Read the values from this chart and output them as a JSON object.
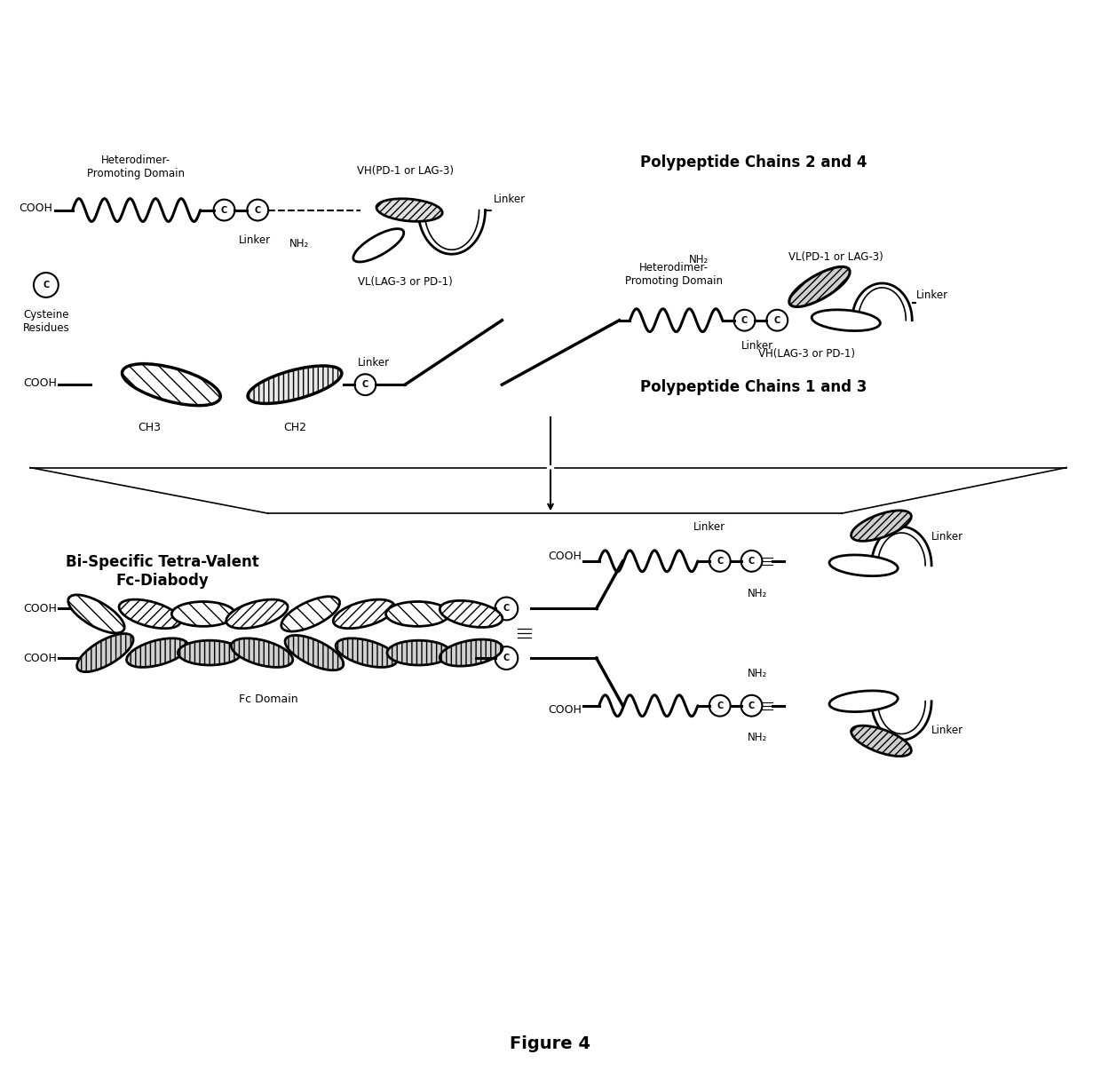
{
  "title": "Figure 4",
  "bg_color": "#ffffff",
  "text_color": "#000000",
  "labels": {
    "heterodimer_promoting_domain_top": "Heterodimer-\nPromoting Domain",
    "vh_pd1_lag3": "VH(PD-1 or LAG-3)",
    "vl_lag3_pd1": "VL(LAG-3 or PD-1)",
    "linker": "Linker",
    "cooh": "COOH",
    "nh2": "NH₂",
    "cysteine_residues": "Cysteine\nResidues",
    "ch3": "CH3",
    "ch2": "CH2",
    "polypeptide_chains_24": "Polypeptide Chains 2 and 4",
    "polypeptide_chains_13": "Polypeptide Chains 1 and 3",
    "bi_specific": "Bi-Specific Tetra-Valent\nFc-Diabody",
    "fc_domain": "Fc Domain",
    "vl_pd1_lag3": "VL(PD-1 or LAG-3)",
    "vh_lag3_pd1": "VH(LAG-3 or PD-1)"
  },
  "figure_label": "Figure 4"
}
